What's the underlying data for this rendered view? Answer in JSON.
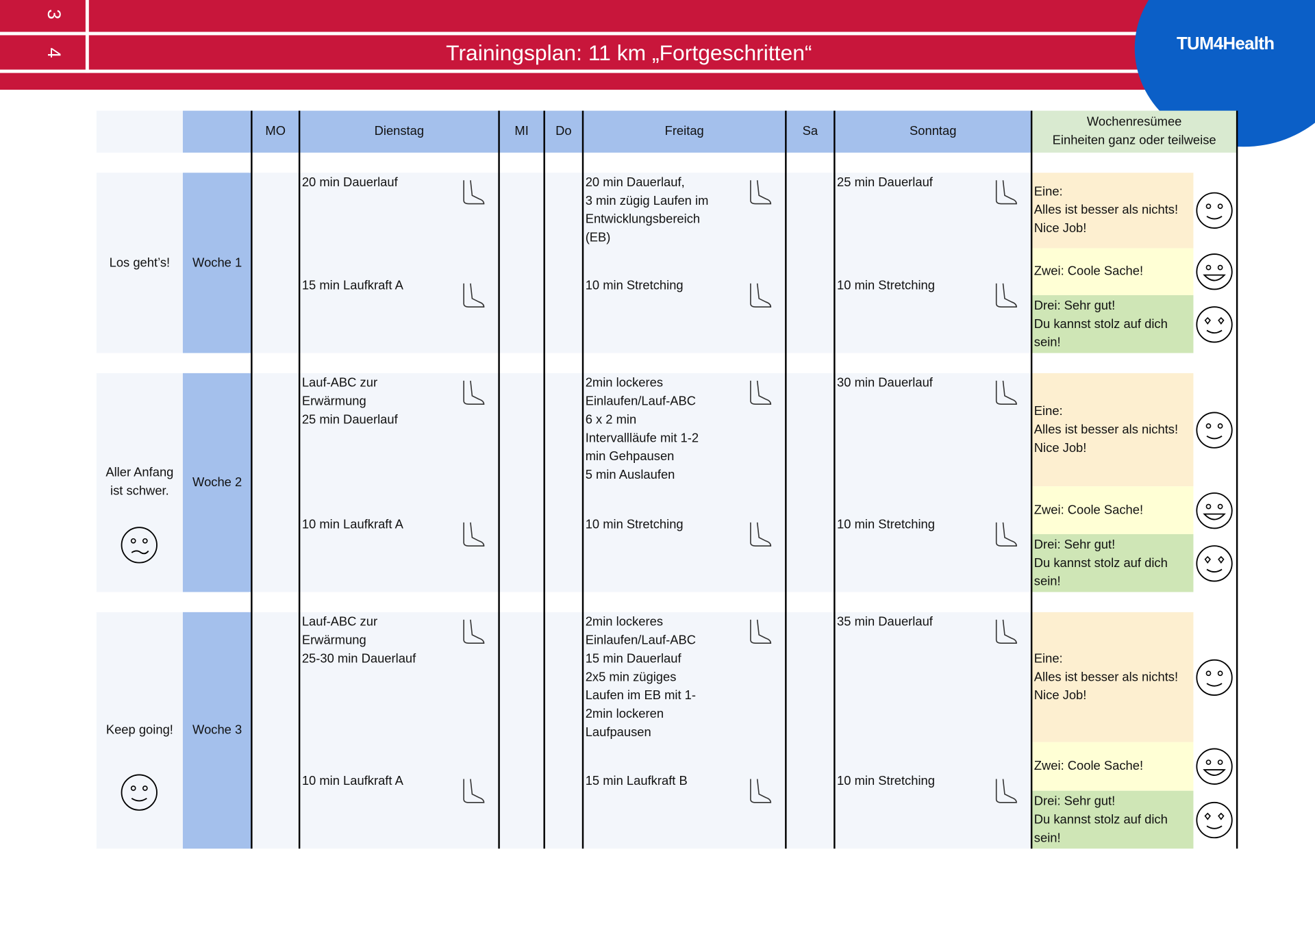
{
  "header": {
    "page_numbers": [
      "3",
      "4"
    ],
    "title": "Trainingsplan: 11 km „Fortgeschritten“",
    "logo": "TUM4Health"
  },
  "table": {
    "columns": [
      "MO",
      "Dienstag",
      "MI",
      "Do",
      "Freitag",
      "Sa",
      "Sonntag"
    ],
    "summary_header": [
      "Wochenresümee",
      "Einheiten ganz oder teilweise"
    ],
    "weeks": [
      {
        "motto": "Los geht’s!",
        "label": "Woche 1",
        "tuesday": [
          "20 min Dauerlauf",
          "15 min Laufkraft A"
        ],
        "friday": [
          "20 min Dauerlauf,\n3 min zügig Laufen im\nEntwicklungsbereich\n(EB)",
          "10 min Stretching"
        ],
        "sunday": [
          "25 min Dauerlauf",
          "10 min Stretching"
        ],
        "summary": [
          "Eine:\nAlles ist besser als nichts!\nNice Job!",
          "Zwei: Coole Sache!",
          "Drei: Sehr gut!\nDu kannst stolz auf dich\nsein!"
        ]
      },
      {
        "motto": "Aller Anfang\nist schwer.",
        "label": "Woche 2",
        "tuesday": [
          "Lauf-ABC zur\nErwärmung\n25 min Dauerlauf",
          "10 min Laufkraft A"
        ],
        "friday": [
          "2min lockeres\nEinlaufen/Lauf-ABC\n6 x 2 min\nIntervallläufe mit 1-2\nmin Gehpausen\n5 min Auslaufen",
          "10 min Stretching"
        ],
        "sunday": [
          "30 min Dauerlauf",
          "10 min Stretching"
        ],
        "summary": [
          "Eine:\nAlles ist besser als nichts!\nNice Job!",
          "Zwei: Coole Sache!",
          "Drei: Sehr gut!\nDu kannst stolz auf dich\nsein!"
        ]
      },
      {
        "motto": "Keep going!",
        "label": "Woche 3",
        "tuesday": [
          "Lauf-ABC zur\nErwärmung\n25-30 min Dauerlauf",
          "10 min Laufkraft A"
        ],
        "friday": [
          "2min lockeres\nEinlaufen/Lauf-ABC\n15 min Dauerlauf\n2x5 min zügiges\nLaufen im EB mit 1-\n2min lockeren\nLaufpausen",
          "15 min Laufkraft B"
        ],
        "sunday": [
          "35 min Dauerlauf",
          "10 min Stretching"
        ],
        "summary": [
          "Eine:\nAlles ist besser als nichts!\nNice Job!",
          "Zwei: Coole Sache!",
          "Drei: Sehr gut!\nDu kannst stolz auf dich\nsein!"
        ]
      }
    ]
  }
}
